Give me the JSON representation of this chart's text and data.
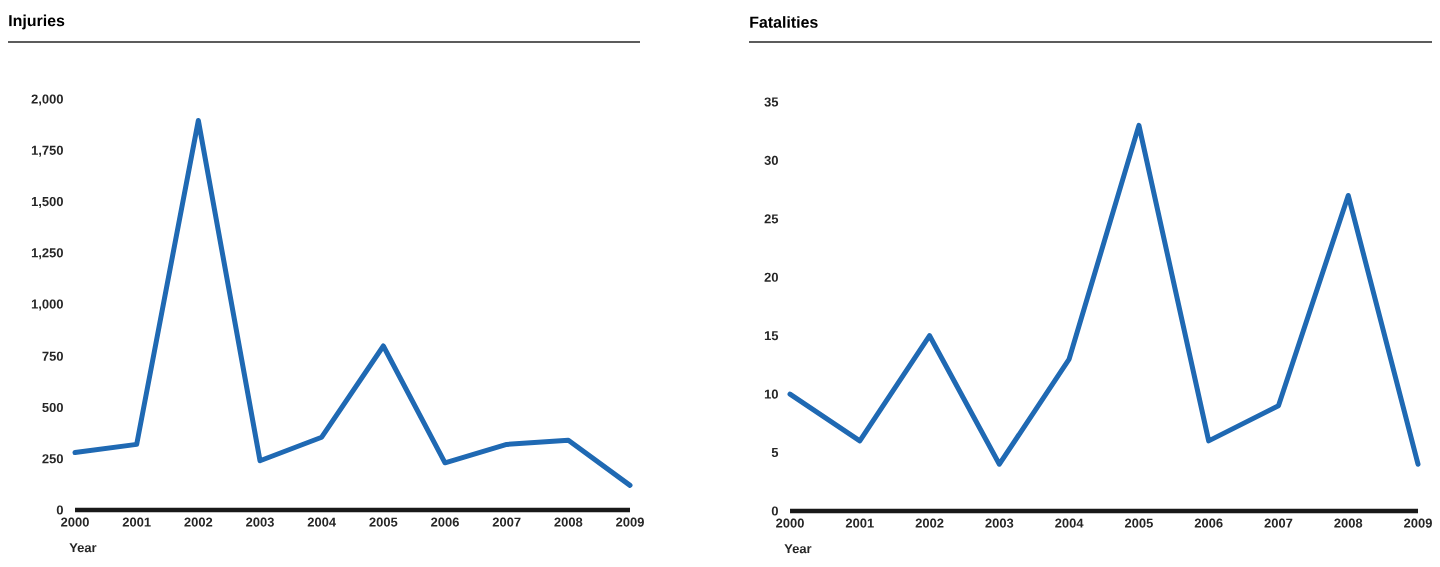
{
  "chart_data": [
    {
      "type": "line",
      "title": "Injuries",
      "xlabel": "Year",
      "categories": [
        "2000",
        "2001",
        "2002",
        "2003",
        "2004",
        "2005",
        "2006",
        "2007",
        "2008",
        "2009"
      ],
      "color": "#1f69b3",
      "values": [
        280,
        320,
        1900,
        240,
        355,
        800,
        230,
        320,
        340,
        120
      ],
      "ylim": [
        0,
        2000
      ],
      "yticks": [
        0,
        250,
        500,
        750,
        {
          "value": 1000,
          "label": "1,000"
        },
        {
          "value": 1250,
          "label": "1,250"
        },
        {
          "value": 1500,
          "label": "1,500"
        },
        {
          "value": 1750,
          "label": "1,750"
        },
        {
          "value": 2000,
          "label": "2,000"
        }
      ]
    },
    {
      "type": "line",
      "title": "Fatalities",
      "xlabel": "Year",
      "categories": [
        "2000",
        "2001",
        "2002",
        "2003",
        "2004",
        "2005",
        "2006",
        "2007",
        "2008",
        "2009"
      ],
      "color": "#1f69b3",
      "values": [
        10,
        6,
        15,
        4,
        13,
        33,
        6,
        9,
        27,
        4
      ],
      "ylim": [
        0,
        35
      ],
      "yticks": [
        0,
        5,
        10,
        15,
        20,
        25,
        30,
        35
      ]
    }
  ]
}
